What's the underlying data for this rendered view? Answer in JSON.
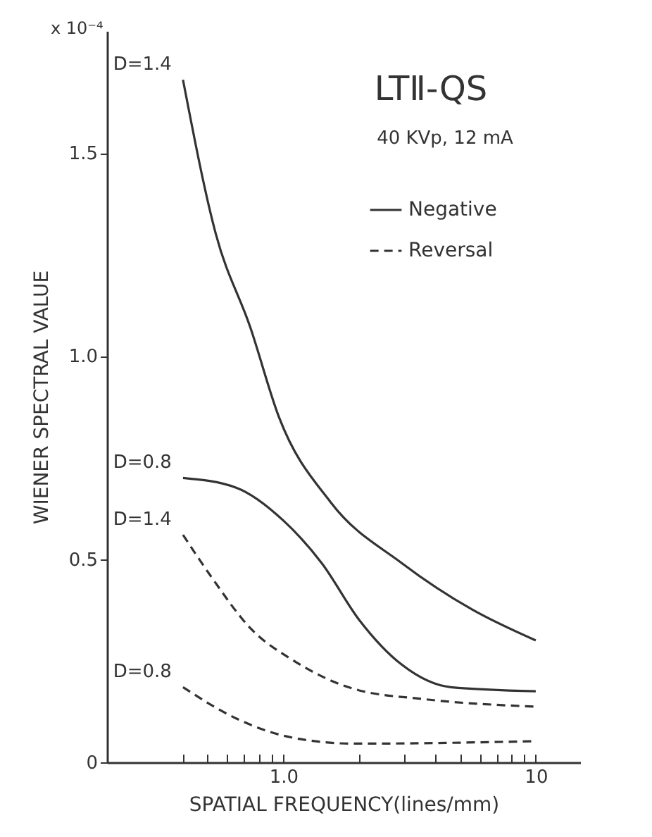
{
  "chart_data": {
    "type": "line",
    "title": "LTⅡ-QS",
    "subtitle": "40 KVp, 12 mA",
    "xlabel": "SPATIAL FREQUENCY(lines/mm)",
    "ylabel": "WIENER SPECTRAL VALUE",
    "log": "x",
    "xlim": [
      0.2,
      15
    ],
    "ylim": [
      0,
      1.8
    ],
    "xticks": [
      {
        "value": 0.4,
        "label": null
      },
      {
        "value": 0.5,
        "label": null
      },
      {
        "value": 0.6,
        "label": null
      },
      {
        "value": 0.7,
        "label": null
      },
      {
        "value": 0.8,
        "label": null
      },
      {
        "value": 0.9,
        "label": null
      },
      {
        "value": 1,
        "label": "1.0"
      },
      {
        "value": 2,
        "label": null
      },
      {
        "value": 3,
        "label": null
      },
      {
        "value": 4,
        "label": null
      },
      {
        "value": 5,
        "label": null
      },
      {
        "value": 6,
        "label": null
      },
      {
        "value": 7,
        "label": null
      },
      {
        "value": 8,
        "label": null
      },
      {
        "value": 9,
        "label": null
      },
      10
    ],
    "yticks": [
      0,
      {
        "value": 0.5,
        "label": "0.5"
      },
      {
        "value": 1,
        "label": "1.0"
      },
      {
        "value": 1.5,
        "label": "1.5"
      }
    ],
    "grid": false,
    "legend": "top right",
    "marker": "none",
    "series": [
      {
        "name": "Negative",
        "color": "#333333",
        "line_style": "solid",
        "x": [
          0.4,
          0.54,
          0.74,
          0.96,
          1.54,
          2.95,
          5.6,
          10
        ],
        "values": [
          1.68,
          1.3,
          1.07,
          0.85,
          0.64,
          0.49,
          0.376,
          0.3
        ]
      },
      {
        "color": "#333333",
        "line_style": "solid",
        "x": [
          0.4,
          0.65,
          1.0,
          1.42,
          2.0,
          2.95,
          4.6,
          10
        ],
        "values": [
          0.7,
          0.676,
          0.595,
          0.49,
          0.35,
          0.24,
          0.185,
          0.175
        ]
      },
      {
        "name": "Reversal",
        "color": "#333333",
        "line_style": "dashed",
        "x": [
          0.4,
          0.52,
          0.74,
          1.1,
          1.92,
          3.67,
          10
        ],
        "values": [
          0.56,
          0.455,
          0.33,
          0.25,
          0.18,
          0.155,
          0.137
        ]
      },
      {
        "color": "#333333",
        "line_style": "dashed",
        "x": [
          0.4,
          0.65,
          1.1,
          1.92,
          10
        ],
        "values": [
          0.185,
          0.108,
          0.06,
          0.046,
          0.052
        ]
      }
    ],
    "annotations": [
      "x 10⁻⁴",
      "D=1.4",
      "D=0.8",
      "D=1.4",
      "D=0.8"
    ]
  }
}
